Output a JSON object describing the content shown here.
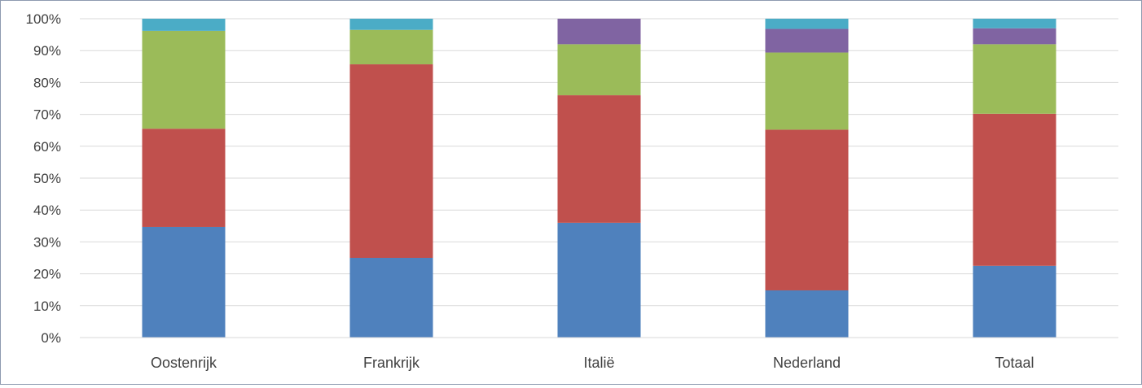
{
  "chart_data": {
    "type": "bar",
    "stacked": true,
    "percent": true,
    "categories": [
      "Oostenrijk",
      "Frankrijk",
      "Italië",
      "Nederland",
      "Totaal"
    ],
    "ylim": [
      0,
      100
    ],
    "yticks": [
      "0%",
      "10%",
      "20%",
      "30%",
      "40%",
      "50%",
      "60%",
      "70%",
      "80%",
      "90%",
      "100%"
    ],
    "grid": true,
    "legend": "none",
    "series": [
      {
        "color": "#4f81bd",
        "values": [
          34.7,
          25.0,
          36.0,
          14.8,
          22.5
        ]
      },
      {
        "color": "#c0504d",
        "values": [
          30.8,
          60.7,
          40.0,
          50.4,
          47.7
        ]
      },
      {
        "color": "#9bbb59",
        "values": [
          30.7,
          10.8,
          16.0,
          24.2,
          21.8
        ]
      },
      {
        "color": "#8064a2",
        "values": [
          0.0,
          0.0,
          8.0,
          7.4,
          5.0
        ]
      },
      {
        "color": "#4bacc6",
        "values": [
          3.8,
          3.5,
          0.0,
          3.2,
          3.0
        ]
      }
    ]
  }
}
